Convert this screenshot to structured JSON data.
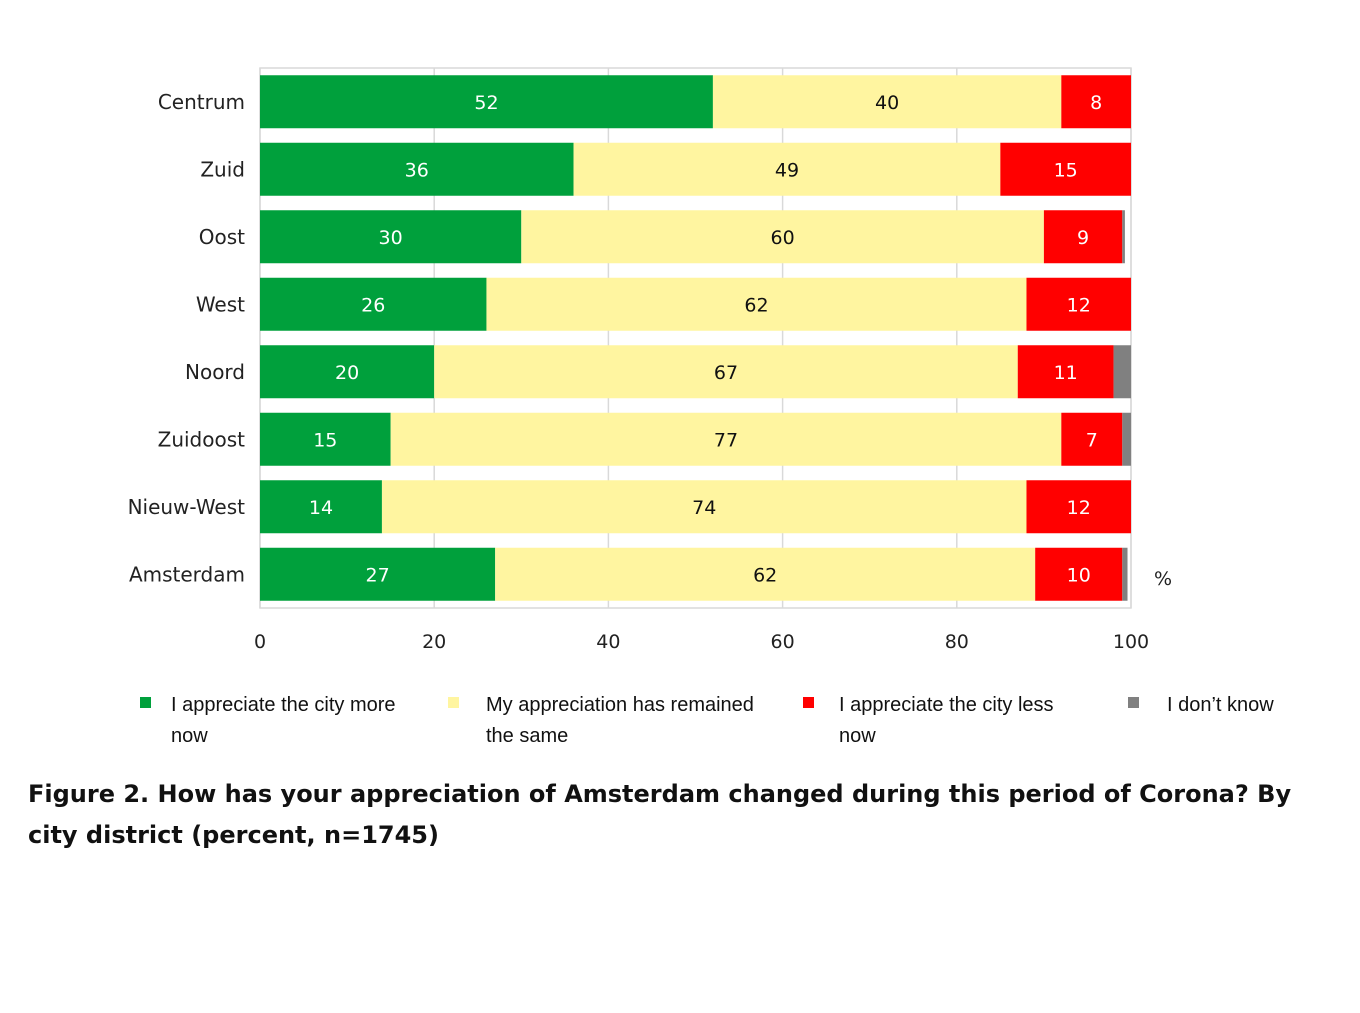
{
  "chart_data": {
    "type": "bar",
    "orientation": "horizontal",
    "stacked": true,
    "categories": [
      "Centrum",
      "Zuid",
      "Oost",
      "West",
      "Noord",
      "Zuidoost",
      "Nieuw-West",
      "Amsterdam"
    ],
    "series": [
      {
        "name": "I appreciate the city more now",
        "color": "#00a03c",
        "label_color": "#ffffff",
        "values": [
          52,
          36,
          30,
          26,
          20,
          15,
          14,
          27
        ],
        "labels": [
          "52",
          "36",
          "30",
          "26",
          "20",
          "15",
          "14",
          "27"
        ]
      },
      {
        "name": "My appreciation has remained the same",
        "color": "#fff5a0",
        "label_color": "#111111",
        "values": [
          40,
          49,
          60,
          62,
          67,
          77,
          74,
          62
        ],
        "labels": [
          "40",
          "49",
          "60",
          "62",
          "67",
          "77",
          "74",
          "62"
        ]
      },
      {
        "name": "I appreciate the city less now",
        "color": "#ff0000",
        "label_color": "#ffffff",
        "values": [
          8,
          15,
          9,
          12,
          11,
          7,
          12,
          10
        ],
        "labels": [
          "8",
          "15",
          "9",
          "12",
          "11",
          "7",
          "12",
          "10"
        ]
      },
      {
        "name": "I don’t know",
        "color": "#808080",
        "label_color": "#ffffff",
        "values": [
          0,
          0,
          0.3,
          0,
          2.3,
          1.2,
          0.3,
          0.6
        ],
        "labels": [
          "",
          "",
          "",
          "",
          "",
          "",
          "",
          ""
        ]
      }
    ],
    "xlim": [
      0,
      100
    ],
    "xticks": [
      "0",
      "20",
      "40",
      "60",
      "80",
      "100"
    ],
    "unit_label": "%",
    "grid": true,
    "legend_position": "bottom"
  },
  "legend": [
    {
      "line1": "I appreciate the city more",
      "line2": "now",
      "color": "#00a03c"
    },
    {
      "line1": "My appreciation has remained",
      "line2": "the same",
      "color": "#fff5a0"
    },
    {
      "line1": "I appreciate the city less",
      "line2": "now",
      "color": "#ff0000"
    },
    {
      "line1": "I don’t know",
      "line2": "",
      "color": "#808080"
    }
  ],
  "caption": "Figure 2. How has your appreciation of Amsterdam changed during this period of Corona? By city district (percent, n=1745)"
}
